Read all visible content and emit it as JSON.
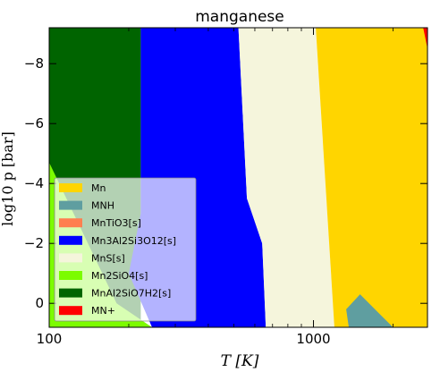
{
  "chart_data": {
    "type": "area",
    "title": "manganese",
    "xlabel": "T [K]",
    "ylabel": "log10 p [bar]",
    "x_scale": "log",
    "xlim": [
      100,
      2700
    ],
    "ylim": [
      0.8,
      -9.2
    ],
    "y_inverted": true,
    "x_ticks": [
      100,
      1000
    ],
    "y_ticks": [
      0,
      -2,
      -4,
      -6,
      -8
    ],
    "grid": false,
    "legend_position": "lower-left",
    "series": [
      {
        "name": "Mn",
        "color": "#ffd500"
      },
      {
        "name": "MNH",
        "color": "#5f9ea0"
      },
      {
        "name": "MnTiO3[s]",
        "color": "#ff7f50"
      },
      {
        "name": "Mn3Al2Si3O12[s]",
        "color": "#0000ff"
      },
      {
        "name": "MnS[s]",
        "color": "#f5f5dc"
      },
      {
        "name": "Mn2SiO4[s]",
        "color": "#7cfc00"
      },
      {
        "name": "MnAl2SiO7H2[s]",
        "color": "#006400"
      },
      {
        "name": "MN+",
        "color": "#ff0000"
      }
    ],
    "regions": [
      {
        "name": "MnAl2SiO7H2[s]",
        "boundary": [
          [
            100,
            -9.2
          ],
          [
            222,
            -9.2
          ],
          [
            222,
            0.8
          ],
          [
            100,
            0.8
          ]
        ]
      },
      {
        "name": "Mn2SiO4[s]",
        "boundary": [
          [
            100,
            -4.7
          ],
          [
            135,
            -2.3
          ],
          [
            180,
            0.0
          ],
          [
            245,
            0.8
          ],
          [
            100,
            0.8
          ]
        ]
      },
      {
        "name": "Mn3Al2Si3O12[s]",
        "boundary": [
          [
            222,
            -9.2
          ],
          [
            520,
            -9.2
          ],
          [
            560,
            -3.5
          ],
          [
            640,
            -2.0
          ],
          [
            660,
            0.8
          ],
          [
            245,
            0.8
          ],
          [
            200,
            -1.0
          ],
          [
            222,
            -3.0
          ]
        ]
      },
      {
        "name": "MnS[s]",
        "boundary": [
          [
            520,
            -9.2
          ],
          [
            1020,
            -9.2
          ],
          [
            1200,
            0.8
          ],
          [
            660,
            0.8
          ],
          [
            640,
            -2.0
          ],
          [
            560,
            -3.5
          ]
        ]
      },
      {
        "name": "Mn",
        "boundary": [
          [
            1020,
            -9.2
          ],
          [
            2700,
            -9.2
          ],
          [
            2700,
            0.8
          ],
          [
            1200,
            0.8
          ]
        ]
      },
      {
        "name": "MNH",
        "boundary": [
          [
            1360,
            0.8
          ],
          [
            1330,
            0.2
          ],
          [
            1500,
            -0.3
          ],
          [
            1800,
            0.4
          ],
          [
            2000,
            0.8
          ]
        ]
      },
      {
        "name": "MN+",
        "boundary": [
          [
            2600,
            -9.2
          ],
          [
            2700,
            -9.2
          ],
          [
            2700,
            -8.5
          ]
        ]
      }
    ]
  }
}
